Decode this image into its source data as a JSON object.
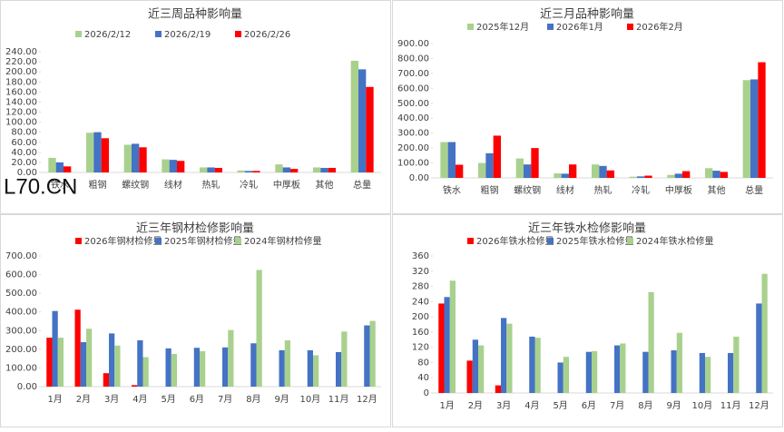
{
  "watermark": "L70.CN",
  "chart_data": [
    {
      "type": "bar",
      "title": "近三周品种影响量",
      "categories": [
        "铁水",
        "粗钢",
        "螺纹钢",
        "线材",
        "热轧",
        "冷轧",
        "中厚板",
        "其他",
        "总量"
      ],
      "series": [
        {
          "name": "2026/2/12",
          "color": "#a9d18e",
          "values": [
            29,
            79,
            55,
            26,
            10,
            4,
            16,
            10,
            222
          ]
        },
        {
          "name": "2026/2/19",
          "color": "#4472c4",
          "values": [
            20,
            80,
            57,
            25,
            10,
            3,
            10,
            9,
            205
          ]
        },
        {
          "name": "2026/2/26",
          "color": "#ff0000",
          "values": [
            12,
            68,
            50,
            23,
            9,
            3,
            7,
            9,
            170
          ]
        }
      ],
      "ylim": [
        0,
        240
      ],
      "yticks": [
        {
          "value": 0,
          "label": "0.00"
        },
        {
          "value": 20,
          "label": "20.00"
        },
        {
          "value": 40,
          "label": "40.00"
        },
        {
          "value": 60,
          "label": "60.00"
        },
        {
          "value": 80,
          "label": "80.00"
        },
        {
          "value": 100,
          "label": "100.00"
        },
        {
          "value": 120,
          "label": "120.00"
        },
        {
          "value": 140,
          "label": "140.00"
        },
        {
          "value": 160,
          "label": "160.00"
        },
        {
          "value": 180,
          "label": "180.00"
        },
        {
          "value": 200,
          "label": "200.00"
        },
        {
          "value": 220,
          "label": "220.00"
        },
        {
          "value": 240,
          "label": "240.00"
        }
      ]
    },
    {
      "type": "bar",
      "title": "近三月品种影响量",
      "categories": [
        "铁水",
        "粗钢",
        "螺纹钢",
        "线材",
        "热轧",
        "冷轧",
        "中厚板",
        "其他",
        "总量"
      ],
      "series": [
        {
          "name": "2025年12月",
          "color": "#a9d18e",
          "values": [
            240,
            100,
            130,
            30,
            90,
            8,
            20,
            65,
            655
          ]
        },
        {
          "name": "2026年1月",
          "color": "#4472c4",
          "values": [
            240,
            165,
            90,
            28,
            80,
            10,
            28,
            48,
            660
          ]
        },
        {
          "name": "2026年2月",
          "color": "#ff0000",
          "values": [
            88,
            283,
            200,
            90,
            50,
            15,
            45,
            40,
            775
          ]
        }
      ],
      "ylim": [
        0,
        900
      ],
      "yticks": [
        {
          "value": 0,
          "label": "0.00"
        },
        {
          "value": 100,
          "label": "100.00"
        },
        {
          "value": 200,
          "label": "200.00"
        },
        {
          "value": 300,
          "label": "300.00"
        },
        {
          "value": 400,
          "label": "400.00"
        },
        {
          "value": 500,
          "label": "500.00"
        },
        {
          "value": 600,
          "label": "600.00"
        },
        {
          "value": 700,
          "label": "700.00"
        },
        {
          "value": 800,
          "label": "800.00"
        },
        {
          "value": 900,
          "label": "900.00"
        }
      ]
    },
    {
      "type": "bar",
      "title": "近三年钢材检修影响量",
      "categories": [
        "1月",
        "2月",
        "3月",
        "4月",
        "5月",
        "6月",
        "7月",
        "8月",
        "9月",
        "10月",
        "11月",
        "12月"
      ],
      "series": [
        {
          "name": "2026年钢材检修量",
          "color": "#ff0000",
          "values": [
            262,
            412,
            72,
            8,
            null,
            null,
            null,
            null,
            null,
            null,
            null,
            null
          ]
        },
        {
          "name": "2025年钢材检修量",
          "color": "#4472c4",
          "values": [
            405,
            238,
            285,
            248,
            205,
            208,
            210,
            232,
            195,
            195,
            185,
            328
          ]
        },
        {
          "name": "2024年钢材检修量",
          "color": "#a9d18e",
          "values": [
            262,
            310,
            220,
            158,
            175,
            190,
            303,
            625,
            248,
            168,
            295,
            352
          ]
        }
      ],
      "ylim": [
        0,
        700
      ],
      "yticks": [
        {
          "value": 0,
          "label": "0.00"
        },
        {
          "value": 100,
          "label": "100.00"
        },
        {
          "value": 200,
          "label": "200.00"
        },
        {
          "value": 300,
          "label": "300.00"
        },
        {
          "value": 400,
          "label": "400.00"
        },
        {
          "value": 500,
          "label": "500.00"
        },
        {
          "value": 600,
          "label": "600.00"
        },
        {
          "value": 700,
          "label": "700.00"
        }
      ]
    },
    {
      "type": "bar",
      "title": "近三年铁水检修影响量",
      "categories": [
        "1月",
        "2月",
        "3月",
        "4月",
        "5月",
        "6月",
        "7月",
        "8月",
        "9月",
        "10月",
        "11月",
        "12月"
      ],
      "series": [
        {
          "name": "2026年铁水检修量",
          "color": "#ff0000",
          "values": [
            235,
            85,
            20,
            null,
            null,
            null,
            null,
            null,
            null,
            null,
            null,
            null
          ]
        },
        {
          "name": "2025年铁水检修量",
          "color": "#4472c4",
          "values": [
            252,
            140,
            197,
            148,
            80,
            108,
            125,
            108,
            112,
            105,
            105,
            235
          ]
        },
        {
          "name": "2024年铁水检修量",
          "color": "#a9d18e",
          "values": [
            295,
            125,
            182,
            145,
            95,
            110,
            130,
            265,
            158,
            95,
            148,
            313
          ]
        }
      ],
      "ylim": [
        0,
        360
      ],
      "yticks": [
        0,
        40,
        80,
        120,
        160,
        200,
        240,
        280,
        320,
        360
      ]
    }
  ]
}
